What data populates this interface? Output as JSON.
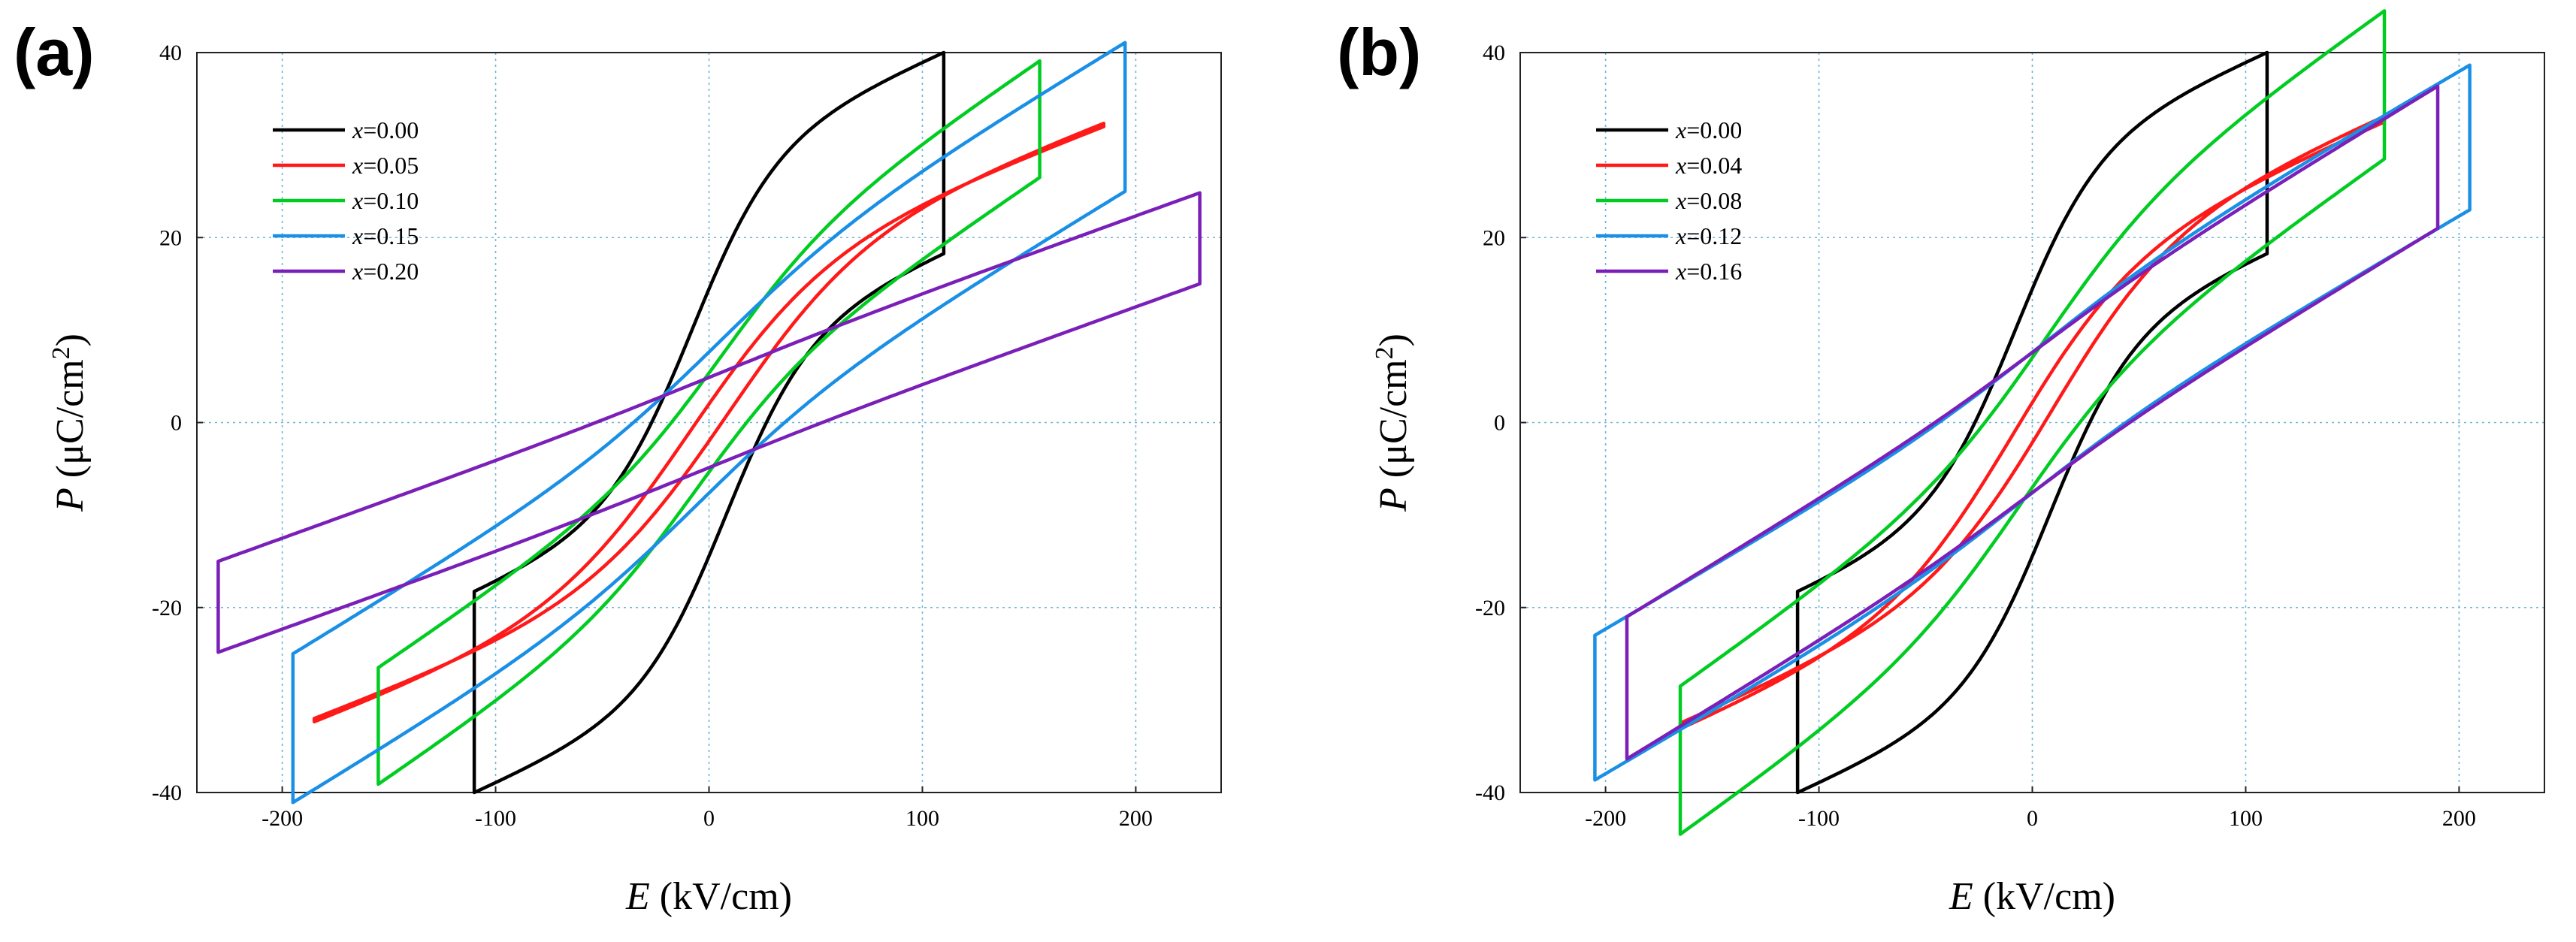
{
  "chart_data": [
    {
      "type": "line",
      "panel_label": "(a)",
      "xlabel_var": "E",
      "xlabel_unit": " (kV/cm)",
      "ylabel_var": "P",
      "ylabel_unit": " (μC/cm",
      "ylabel_sup": "2",
      "ylabel_close": ")",
      "xlim": [
        -240,
        240
      ],
      "ylim": [
        -40,
        40
      ],
      "xticks": [
        -200,
        -100,
        0,
        100,
        200
      ],
      "yticks": [
        -40,
        -20,
        0,
        20,
        40
      ],
      "xtick_labels": [
        "-200",
        "-100",
        "0",
        "100",
        "200"
      ],
      "ytick_labels": [
        "-40",
        "-20",
        "0",
        "20",
        "40"
      ],
      "grid": true,
      "legend_position": "top-left",
      "series": [
        {
          "name": "x=0.00",
          "var": "x",
          "value_text": "=0.00",
          "color": "#000000",
          "Emax": 110,
          "Pmax": 40,
          "Ec": 8,
          "Pr": 20,
          "sat": 0.9
        },
        {
          "name": "x=0.05",
          "var": "x",
          "value_text": "=0.05",
          "color": "#ff1a1a",
          "Emax": 185,
          "Pmax": 32,
          "Ec": 9,
          "Pr": 10,
          "sat": 0.72
        },
        {
          "name": "x=0.10",
          "var": "x",
          "value_text": "=0.10",
          "color": "#00cc22",
          "Emax": 155,
          "Pmax": 26.5,
          "Ec": 6,
          "Pr": 4,
          "sat": 0.38
        },
        {
          "name": "x=0.15",
          "var": "x",
          "value_text": "=0.15",
          "color": "#1a8fe6",
          "Emax": 195,
          "Pmax": 25,
          "Ec": 5,
          "Pr": 2.5,
          "sat": 0.25
        },
        {
          "name": "x=0.20",
          "var": "x",
          "value_text": "=0.20",
          "color": "#7a1fb8",
          "Emax": 230,
          "Pmax": 15,
          "Ec": 4,
          "Pr": 1.5,
          "sat": 0.06
        }
      ]
    },
    {
      "type": "line",
      "panel_label": "(b)",
      "xlabel_var": "E",
      "xlabel_unit": " (kV/cm)",
      "ylabel_var": "P",
      "ylabel_unit": " (μC/cm",
      "ylabel_sup": "2",
      "ylabel_close": ")",
      "xlim": [
        -240,
        240
      ],
      "ylim": [
        -40,
        40
      ],
      "xticks": [
        -200,
        -100,
        0,
        100,
        200
      ],
      "yticks": [
        -40,
        -20,
        0,
        20,
        40
      ],
      "xtick_labels": [
        "-200",
        "-100",
        "0",
        "100",
        "200"
      ],
      "ytick_labels": [
        "-40",
        "-20",
        "0",
        "20",
        "40"
      ],
      "grid": true,
      "legend_position": "top-left",
      "series": [
        {
          "name": "x=0.00",
          "var": "x",
          "value_text": "=0.00",
          "color": "#000000",
          "Emax": 110,
          "Pmax": 40,
          "Ec": 8,
          "Pr": 20,
          "sat": 0.9
        },
        {
          "name": "x=0.04",
          "var": "x",
          "value_text": "=0.04",
          "color": "#ff1a1a",
          "Emax": 165,
          "Pmax": 32.5,
          "Ec": 9,
          "Pr": 10,
          "sat": 0.72
        },
        {
          "name": "x=0.08",
          "var": "x",
          "value_text": "=0.08",
          "color": "#00cc22",
          "Emax": 165,
          "Pmax": 28.5,
          "Ec": 6,
          "Pr": 3.5,
          "sat": 0.38
        },
        {
          "name": "x=0.12",
          "var": "x",
          "value_text": "=0.12",
          "color": "#1a8fe6",
          "Emax": 205,
          "Pmax": 23,
          "Ec": 5,
          "Pr": 2,
          "sat": 0.15
        },
        {
          "name": "x=0.16",
          "var": "x",
          "value_text": "=0.16",
          "color": "#7a1fb8",
          "Emax": 190,
          "Pmax": 21,
          "Ec": 4,
          "Pr": 1.5,
          "sat": 0.1
        }
      ]
    }
  ]
}
